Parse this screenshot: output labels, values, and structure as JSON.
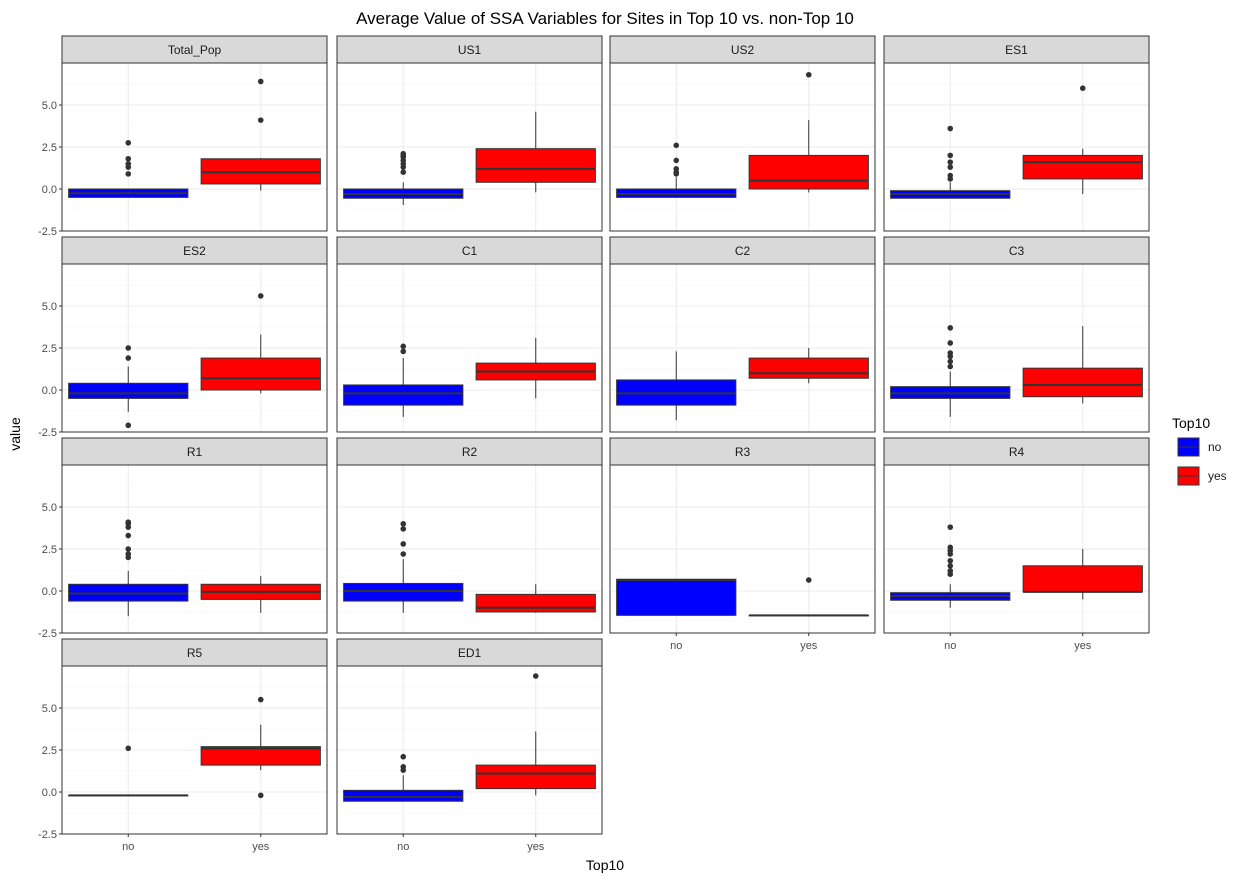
{
  "chart_data": {
    "type": "boxplot",
    "title": "Average Value of SSA Variables for Sites in Top 10 vs. non-Top 10",
    "xlabel": "Top10",
    "ylabel": "value",
    "ylim": [
      -2.5,
      7.5
    ],
    "y_ticks": [
      -2.5,
      0.0,
      2.5,
      5.0
    ],
    "y_tick_labels": [
      "-2.5",
      "0.0",
      "2.5",
      "5.0"
    ],
    "categories": [
      "no",
      "yes"
    ],
    "legend": {
      "title": "Top10",
      "position": "right",
      "items": [
        {
          "label": "no",
          "color": "#0000ff"
        },
        {
          "label": "yes",
          "color": "#ff0000"
        }
      ]
    },
    "grid": true,
    "facets": [
      {
        "name": "Total_Pop",
        "boxes": [
          {
            "group": "no",
            "q1": -0.5,
            "median": -0.25,
            "q3": 0.0,
            "wmin": -0.5,
            "wmax": 0.0,
            "outliers": [
              0.9,
              1.3,
              1.5,
              1.8,
              2.75
            ]
          },
          {
            "group": "yes",
            "q1": 0.3,
            "median": 1.0,
            "q3": 1.8,
            "wmin": -0.1,
            "wmax": 1.85,
            "outliers": [
              4.1,
              6.4
            ]
          }
        ]
      },
      {
        "name": "US1",
        "boxes": [
          {
            "group": "no",
            "q1": -0.55,
            "median": -0.3,
            "q3": 0.0,
            "wmin": -0.95,
            "wmax": 0.4,
            "outliers": [
              1.0,
              1.3,
              1.5,
              1.7,
              1.9,
              2.0,
              2.1
            ]
          },
          {
            "group": "yes",
            "q1": 0.4,
            "median": 1.2,
            "q3": 2.4,
            "wmin": -0.2,
            "wmax": 4.6,
            "outliers": []
          }
        ]
      },
      {
        "name": "US2",
        "boxes": [
          {
            "group": "no",
            "q1": -0.5,
            "median": -0.3,
            "q3": 0.0,
            "wmin": -0.5,
            "wmax": 0.7,
            "outliers": [
              0.9,
              1.0,
              1.2,
              1.7,
              2.6
            ]
          },
          {
            "group": "yes",
            "q1": 0.0,
            "median": 0.5,
            "q3": 2.0,
            "wmin": -0.2,
            "wmax": 4.1,
            "outliers": [
              6.8
            ]
          }
        ]
      },
      {
        "name": "ES1",
        "boxes": [
          {
            "group": "no",
            "q1": -0.55,
            "median": -0.3,
            "q3": -0.1,
            "wmin": -0.55,
            "wmax": 0.4,
            "outliers": [
              0.6,
              0.8,
              1.3,
              1.6,
              2.0,
              3.6
            ]
          },
          {
            "group": "yes",
            "q1": 0.6,
            "median": 1.6,
            "q3": 2.0,
            "wmin": -0.3,
            "wmax": 2.4,
            "outliers": [
              6.0
            ]
          }
        ]
      },
      {
        "name": "ES2",
        "boxes": [
          {
            "group": "no",
            "q1": -0.5,
            "median": -0.2,
            "q3": 0.4,
            "wmin": -1.3,
            "wmax": 1.4,
            "outliers": [
              -2.1,
              1.9,
              2.5
            ]
          },
          {
            "group": "yes",
            "q1": 0.0,
            "median": 0.7,
            "q3": 1.9,
            "wmin": -0.2,
            "wmax": 3.3,
            "outliers": [
              5.6
            ]
          }
        ]
      },
      {
        "name": "C1",
        "boxes": [
          {
            "group": "no",
            "q1": -0.9,
            "median": -0.2,
            "q3": 0.3,
            "wmin": -1.6,
            "wmax": 1.9,
            "outliers": [
              2.3,
              2.6
            ]
          },
          {
            "group": "yes",
            "q1": 0.6,
            "median": 1.1,
            "q3": 1.6,
            "wmin": -0.5,
            "wmax": 3.1,
            "outliers": []
          }
        ]
      },
      {
        "name": "C2",
        "boxes": [
          {
            "group": "no",
            "q1": -0.9,
            "median": -0.2,
            "q3": 0.6,
            "wmin": -1.8,
            "wmax": 2.3,
            "outliers": []
          },
          {
            "group": "yes",
            "q1": 0.7,
            "median": 1.0,
            "q3": 1.9,
            "wmin": 0.4,
            "wmax": 2.5,
            "outliers": []
          }
        ]
      },
      {
        "name": "C3",
        "boxes": [
          {
            "group": "no",
            "q1": -0.5,
            "median": -0.2,
            "q3": 0.2,
            "wmin": -1.6,
            "wmax": 1.1,
            "outliers": [
              1.4,
              1.7,
              2.0,
              2.2,
              2.8,
              3.7
            ]
          },
          {
            "group": "yes",
            "q1": -0.4,
            "median": 0.3,
            "q3": 1.3,
            "wmin": -0.8,
            "wmax": 3.8,
            "outliers": []
          }
        ]
      },
      {
        "name": "R1",
        "boxes": [
          {
            "group": "no",
            "q1": -0.6,
            "median": -0.15,
            "q3": 0.4,
            "wmin": -1.5,
            "wmax": 1.2,
            "outliers": [
              2.0,
              2.2,
              2.5,
              3.3,
              3.8,
              4.0,
              4.1
            ]
          },
          {
            "group": "yes",
            "q1": -0.5,
            "median": -0.05,
            "q3": 0.4,
            "wmin": -1.3,
            "wmax": 0.9,
            "outliers": []
          }
        ]
      },
      {
        "name": "R2",
        "boxes": [
          {
            "group": "no",
            "q1": -0.6,
            "median": 0.0,
            "q3": 0.45,
            "wmin": -1.3,
            "wmax": 1.9,
            "outliers": [
              2.2,
              2.8,
              3.7,
              4.0
            ]
          },
          {
            "group": "yes",
            "q1": -1.25,
            "median": -1.0,
            "q3": -0.2,
            "wmin": -1.3,
            "wmax": 0.4,
            "outliers": []
          }
        ]
      },
      {
        "name": "R3",
        "boxes": [
          {
            "group": "no",
            "q1": -1.45,
            "median": 0.65,
            "q3": 0.7,
            "wmin": -1.45,
            "wmax": 0.7,
            "outliers": []
          },
          {
            "group": "yes",
            "q1": -1.45,
            "median": -1.45,
            "q3": -1.45,
            "wmin": -1.45,
            "wmax": -1.45,
            "outliers": [
              0.65
            ]
          }
        ]
      },
      {
        "name": "R4",
        "boxes": [
          {
            "group": "no",
            "q1": -0.55,
            "median": -0.3,
            "q3": -0.1,
            "wmin": -1.0,
            "wmax": 0.4,
            "outliers": [
              1.0,
              1.2,
              1.5,
              1.8,
              2.2,
              2.4,
              2.6,
              3.8
            ]
          },
          {
            "group": "yes",
            "q1": -0.05,
            "median": -0.05,
            "q3": 1.5,
            "wmin": -0.5,
            "wmax": 2.5,
            "outliers": []
          }
        ]
      },
      {
        "name": "R5",
        "boxes": [
          {
            "group": "no",
            "q1": -0.2,
            "median": -0.2,
            "q3": -0.2,
            "wmin": -0.2,
            "wmax": -0.2,
            "outliers": [
              2.6
            ]
          },
          {
            "group": "yes",
            "q1": 1.6,
            "median": 2.6,
            "q3": 2.7,
            "wmin": 1.3,
            "wmax": 4.0,
            "outliers": [
              -0.2,
              5.5
            ]
          }
        ]
      },
      {
        "name": "ED1",
        "boxes": [
          {
            "group": "no",
            "q1": -0.55,
            "median": -0.3,
            "q3": 0.1,
            "wmin": -0.55,
            "wmax": 1.0,
            "outliers": [
              1.3,
              1.5,
              2.1
            ]
          },
          {
            "group": "yes",
            "q1": 0.2,
            "median": 1.1,
            "q3": 1.6,
            "wmin": -0.2,
            "wmax": 3.6,
            "outliers": [
              6.9
            ]
          }
        ]
      }
    ]
  }
}
